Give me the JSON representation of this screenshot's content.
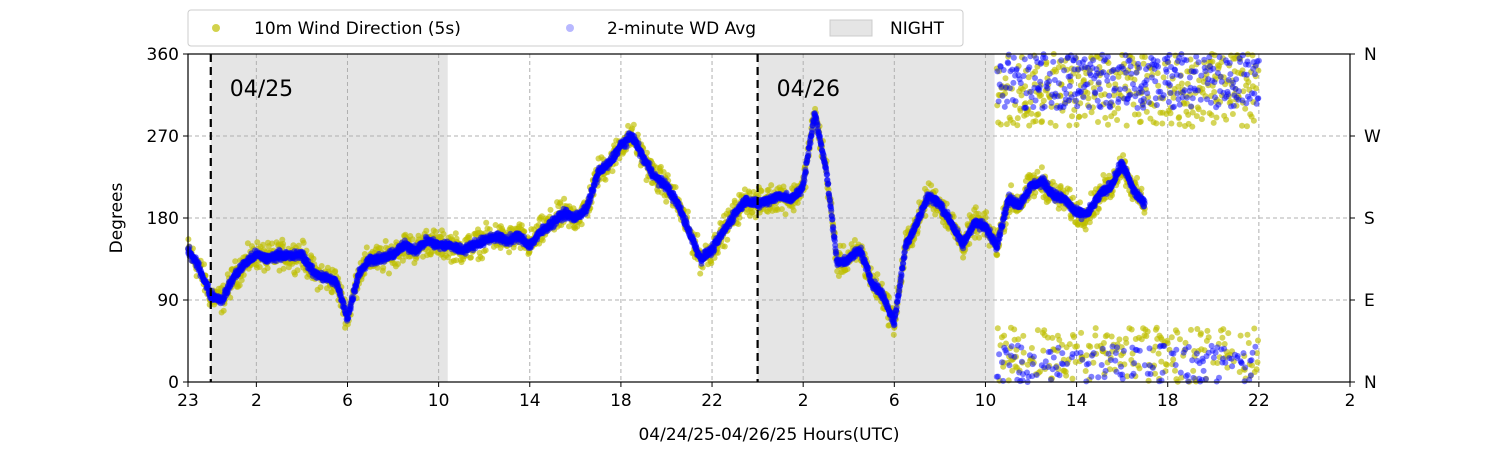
{
  "chart_data": {
    "type": "scatter",
    "xlabel": "04/24/25-04/26/25  Hours(UTC)",
    "ylabel": "Degrees",
    "x_start_label": "23",
    "x_range_hours": [
      0,
      51
    ],
    "x_ticks": [
      {
        "hour": 0,
        "label": "23"
      },
      {
        "hour": 3,
        "label": "2"
      },
      {
        "hour": 7,
        "label": "6"
      },
      {
        "hour": 11,
        "label": "10"
      },
      {
        "hour": 15,
        "label": "14"
      },
      {
        "hour": 19,
        "label": "18"
      },
      {
        "hour": 23,
        "label": "22"
      },
      {
        "hour": 27,
        "label": "2"
      },
      {
        "hour": 31,
        "label": "6"
      },
      {
        "hour": 35,
        "label": "10"
      },
      {
        "hour": 39,
        "label": "14"
      },
      {
        "hour": 43,
        "label": "18"
      },
      {
        "hour": 47,
        "label": "22"
      },
      {
        "hour": 51,
        "label": "2"
      }
    ],
    "ylim": [
      0,
      360
    ],
    "y_ticks": [
      0,
      90,
      180,
      270,
      360
    ],
    "y_right_ticks": [
      {
        "value": 0,
        "label": "N"
      },
      {
        "value": 90,
        "label": "E"
      },
      {
        "value": 180,
        "label": "S"
      },
      {
        "value": 270,
        "label": "W"
      },
      {
        "value": 360,
        "label": "N"
      }
    ],
    "grid": true,
    "legend_placement": "top-left, above plot",
    "legend": [
      "10m Wind Direction (5s)",
      "2-minute WD Avg",
      "NIGHT"
    ],
    "day_markers": [
      {
        "hour": 1,
        "label": "04/25"
      },
      {
        "hour": 25,
        "label": "04/26"
      }
    ],
    "night_periods_hours": [
      [
        1,
        11.4
      ],
      [
        25,
        35.4
      ]
    ],
    "series": [
      {
        "name": "10m Wind Direction (5s)",
        "color": "#bfbf00",
        "spread_deg": 22,
        "points": [
          [
            0,
            145
          ],
          [
            0.5,
            125
          ],
          [
            1,
            95
          ],
          [
            1.5,
            90
          ],
          [
            2,
            115
          ],
          [
            2.5,
            130
          ],
          [
            3,
            140
          ],
          [
            3.5,
            135
          ],
          [
            4,
            140
          ],
          [
            4.5,
            138
          ],
          [
            5,
            140
          ],
          [
            5.5,
            120
          ],
          [
            6,
            115
          ],
          [
            6.5,
            110
          ],
          [
            7,
            70
          ],
          [
            7.5,
            120
          ],
          [
            8,
            135
          ],
          [
            8.5,
            135
          ],
          [
            9,
            140
          ],
          [
            9.5,
            150
          ],
          [
            10,
            145
          ],
          [
            10.5,
            155
          ],
          [
            11,
            150
          ],
          [
            11.5,
            150
          ],
          [
            12,
            145
          ],
          [
            12.5,
            150
          ],
          [
            13,
            155
          ],
          [
            13.5,
            160
          ],
          [
            14,
            155
          ],
          [
            14.5,
            160
          ],
          [
            15,
            150
          ],
          [
            15.5,
            165
          ],
          [
            16,
            175
          ],
          [
            16.5,
            185
          ],
          [
            17,
            180
          ],
          [
            17.5,
            190
          ],
          [
            18,
            230
          ],
          [
            18.5,
            240
          ],
          [
            19,
            260
          ],
          [
            19.5,
            270
          ],
          [
            20,
            245
          ],
          [
            20.5,
            225
          ],
          [
            21,
            215
          ],
          [
            21.5,
            195
          ],
          [
            22,
            165
          ],
          [
            22.5,
            135
          ],
          [
            23,
            145
          ],
          [
            23.5,
            165
          ],
          [
            24,
            185
          ],
          [
            24.5,
            200
          ],
          [
            25,
            195
          ],
          [
            25.5,
            200
          ],
          [
            26,
            205
          ],
          [
            26.5,
            200
          ],
          [
            27,
            215
          ],
          [
            27.5,
            295
          ],
          [
            28,
            235
          ],
          [
            28.5,
            130
          ],
          [
            29,
            135
          ],
          [
            29.5,
            145
          ],
          [
            30,
            110
          ],
          [
            30.5,
            95
          ],
          [
            31,
            65
          ],
          [
            31.5,
            150
          ],
          [
            32,
            175
          ],
          [
            32.5,
            205
          ],
          [
            33,
            195
          ],
          [
            33.5,
            175
          ],
          [
            34,
            150
          ],
          [
            34.5,
            175
          ],
          [
            35,
            170
          ],
          [
            35.5,
            150
          ],
          [
            36,
            200
          ],
          [
            36.5,
            195
          ],
          [
            37,
            215
          ],
          [
            37.5,
            220
          ],
          [
            38,
            205
          ],
          [
            38.5,
            200
          ],
          [
            39,
            185
          ],
          [
            39.5,
            185
          ],
          [
            40,
            205
          ],
          [
            40.5,
            215
          ],
          [
            41,
            240
          ],
          [
            41.5,
            210
          ],
          [
            42,
            195
          ]
        ]
      },
      {
        "name": "2-minute WD Avg",
        "color": "#0000ff",
        "points": [
          [
            0,
            145
          ],
          [
            0.5,
            125
          ],
          [
            1,
            95
          ],
          [
            1.5,
            90
          ],
          [
            2,
            115
          ],
          [
            2.5,
            130
          ],
          [
            3,
            140
          ],
          [
            3.5,
            135
          ],
          [
            4,
            140
          ],
          [
            4.5,
            138
          ],
          [
            5,
            140
          ],
          [
            5.5,
            120
          ],
          [
            6,
            115
          ],
          [
            6.5,
            110
          ],
          [
            7,
            70
          ],
          [
            7.5,
            120
          ],
          [
            8,
            135
          ],
          [
            8.5,
            135
          ],
          [
            9,
            140
          ],
          [
            9.5,
            150
          ],
          [
            10,
            145
          ],
          [
            10.5,
            155
          ],
          [
            11,
            150
          ],
          [
            11.5,
            150
          ],
          [
            12,
            145
          ],
          [
            12.5,
            150
          ],
          [
            13,
            155
          ],
          [
            13.5,
            160
          ],
          [
            14,
            155
          ],
          [
            14.5,
            160
          ],
          [
            15,
            150
          ],
          [
            15.5,
            165
          ],
          [
            16,
            175
          ],
          [
            16.5,
            185
          ],
          [
            17,
            180
          ],
          [
            17.5,
            190
          ],
          [
            18,
            230
          ],
          [
            18.5,
            240
          ],
          [
            19,
            260
          ],
          [
            19.5,
            270
          ],
          [
            20,
            245
          ],
          [
            20.5,
            225
          ],
          [
            21,
            215
          ],
          [
            21.5,
            195
          ],
          [
            22,
            165
          ],
          [
            22.5,
            135
          ],
          [
            23,
            145
          ],
          [
            23.5,
            165
          ],
          [
            24,
            185
          ],
          [
            24.5,
            200
          ],
          [
            25,
            195
          ],
          [
            25.5,
            200
          ],
          [
            26,
            205
          ],
          [
            26.5,
            200
          ],
          [
            27,
            215
          ],
          [
            27.5,
            295
          ],
          [
            28,
            235
          ],
          [
            28.5,
            130
          ],
          [
            29,
            135
          ],
          [
            29.5,
            145
          ],
          [
            30,
            110
          ],
          [
            30.5,
            95
          ],
          [
            31,
            65
          ],
          [
            31.5,
            150
          ],
          [
            32,
            175
          ],
          [
            32.5,
            205
          ],
          [
            33,
            195
          ],
          [
            33.5,
            175
          ],
          [
            34,
            150
          ],
          [
            34.5,
            175
          ],
          [
            35,
            170
          ],
          [
            35.5,
            150
          ],
          [
            36,
            200
          ],
          [
            36.5,
            195
          ],
          [
            37,
            215
          ],
          [
            37.5,
            220
          ],
          [
            38,
            205
          ],
          [
            38.5,
            200
          ],
          [
            39,
            185
          ],
          [
            39.5,
            185
          ],
          [
            40,
            205
          ],
          [
            40.5,
            215
          ],
          [
            41,
            240
          ],
          [
            41.5,
            210
          ],
          [
            42,
            195
          ]
        ]
      }
    ],
    "late_period_bimodal": {
      "hours": [
        35.5,
        47
      ],
      "upper_band_deg": [
        280,
        360
      ],
      "lower_band_deg": [
        0,
        60
      ]
    }
  }
}
